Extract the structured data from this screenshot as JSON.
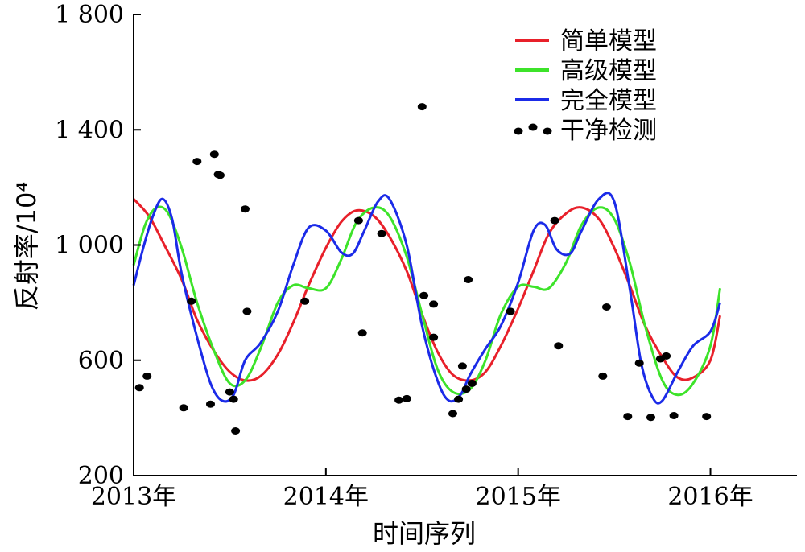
{
  "chart_data": {
    "type": "line",
    "xlabel": "时间序列",
    "ylabel": "反射率/10⁴",
    "x_ticks": [
      {
        "value": 2013.0,
        "label": "2013年"
      },
      {
        "value": 2014.0,
        "label": "2014年"
      },
      {
        "value": 2015.0,
        "label": "2015年"
      },
      {
        "value": 2016.0,
        "label": "2016年"
      }
    ],
    "y_ticks": [
      {
        "value": 200,
        "label": "200"
      },
      {
        "value": 600,
        "label": "600"
      },
      {
        "value": 1000,
        "label": "1 000"
      },
      {
        "value": 1400,
        "label": "1 400"
      },
      {
        "value": 1800,
        "label": "1 800"
      }
    ],
    "xlim": [
      2013.0,
      2016.45
    ],
    "ylim": [
      200,
      1800
    ],
    "grid": false,
    "legend_position": "top-right",
    "series": [
      {
        "name": "简单模型",
        "color": "#e8202a",
        "kind": "line",
        "x": [
          2013.0,
          2013.08,
          2013.16,
          2013.25,
          2013.33,
          2013.42,
          2013.5,
          2013.58,
          2013.66,
          2013.75,
          2013.83,
          2013.91,
          2014.0,
          2014.08,
          2014.16,
          2014.25,
          2014.33,
          2014.42,
          2014.5,
          2014.58,
          2014.66,
          2014.75,
          2014.83,
          2014.91,
          2015.0,
          2015.08,
          2015.16,
          2015.25,
          2015.33,
          2015.42,
          2015.5,
          2015.58,
          2015.66,
          2015.75,
          2015.83,
          2015.91,
          2016.0,
          2016.05
        ],
        "y": [
          1160,
          1100,
          1000,
          880,
          740,
          630,
          560,
          530,
          545,
          620,
          730,
          860,
          990,
          1080,
          1120,
          1100,
          1030,
          910,
          760,
          630,
          550,
          530,
          560,
          650,
          780,
          910,
          1040,
          1110,
          1130,
          1090,
          990,
          860,
          720,
          610,
          540,
          540,
          600,
          755
        ]
      },
      {
        "name": "高级模型",
        "color": "#3de32a",
        "kind": "line",
        "x": [
          2013.0,
          2013.06,
          2013.12,
          2013.18,
          2013.25,
          2013.33,
          2013.42,
          2013.5,
          2013.58,
          2013.66,
          2013.75,
          2013.83,
          2013.91,
          2014.0,
          2014.08,
          2014.16,
          2014.25,
          2014.33,
          2014.42,
          2014.5,
          2014.58,
          2014.66,
          2014.75,
          2014.83,
          2014.91,
          2015.0,
          2015.08,
          2015.16,
          2015.25,
          2015.33,
          2015.42,
          2015.5,
          2015.58,
          2015.66,
          2015.75,
          2015.83,
          2015.91,
          2016.0,
          2016.05
        ],
        "y": [
          930,
          1070,
          1130,
          1110,
          990,
          800,
          630,
          520,
          530,
          640,
          800,
          860,
          850,
          850,
          950,
          1080,
          1130,
          1100,
          960,
          760,
          570,
          490,
          500,
          600,
          760,
          855,
          855,
          850,
          940,
          1070,
          1130,
          1090,
          940,
          720,
          530,
          480,
          520,
          650,
          850
        ]
      },
      {
        "name": "完全模型",
        "color": "#1b2be8",
        "kind": "line",
        "x": [
          2013.0,
          2013.05,
          2013.1,
          2013.15,
          2013.2,
          2013.25,
          2013.33,
          2013.4,
          2013.46,
          2013.52,
          2013.58,
          2013.66,
          2013.75,
          2013.83,
          2013.91,
          2014.0,
          2014.08,
          2014.14,
          2014.2,
          2014.27,
          2014.33,
          2014.42,
          2014.5,
          2014.58,
          2014.64,
          2014.7,
          2014.75,
          2014.83,
          2014.91,
          2015.0,
          2015.08,
          2015.14,
          2015.2,
          2015.27,
          2015.33,
          2015.42,
          2015.5,
          2015.58,
          2015.64,
          2015.7,
          2015.75,
          2015.83,
          2015.91,
          2016.0,
          2016.05
        ],
        "y": [
          860,
          990,
          1100,
          1160,
          1090,
          900,
          680,
          520,
          460,
          480,
          600,
          660,
          770,
          930,
          1060,
          1050,
          975,
          970,
          1050,
          1150,
          1160,
          1000,
          720,
          530,
          460,
          480,
          550,
          640,
          720,
          870,
          1050,
          1070,
          985,
          970,
          1050,
          1160,
          1150,
          850,
          590,
          470,
          460,
          560,
          650,
          700,
          800
        ]
      },
      {
        "name": "干净检测",
        "color": "#000000",
        "kind": "scatter",
        "x": [
          2013.03,
          2013.07,
          2013.26,
          2013.3,
          2013.33,
          2013.4,
          2013.42,
          2013.44,
          2013.45,
          2013.5,
          2013.52,
          2013.53,
          2013.58,
          2013.59,
          2013.89,
          2014.17,
          2014.19,
          2014.29,
          2014.38,
          2014.42,
          2014.5,
          2014.51,
          2014.56,
          2014.56,
          2014.66,
          2014.69,
          2014.71,
          2014.73,
          2014.74,
          2014.76,
          2014.96,
          2015.19,
          2015.21,
          2015.44,
          2015.46,
          2015.57,
          2015.63,
          2015.69,
          2015.74,
          2015.77,
          2015.81,
          2015.98
        ],
        "y": [
          505,
          545,
          435,
          805,
          1290,
          448,
          1315,
          1245,
          1242,
          490,
          465,
          355,
          1125,
          770,
          805,
          1085,
          695,
          1040,
          462,
          467,
          1480,
          825,
          795,
          680,
          415,
          465,
          580,
          500,
          880,
          520,
          770,
          1085,
          650,
          545,
          785,
          405,
          590,
          402,
          605,
          615,
          408,
          405
        ]
      }
    ]
  }
}
